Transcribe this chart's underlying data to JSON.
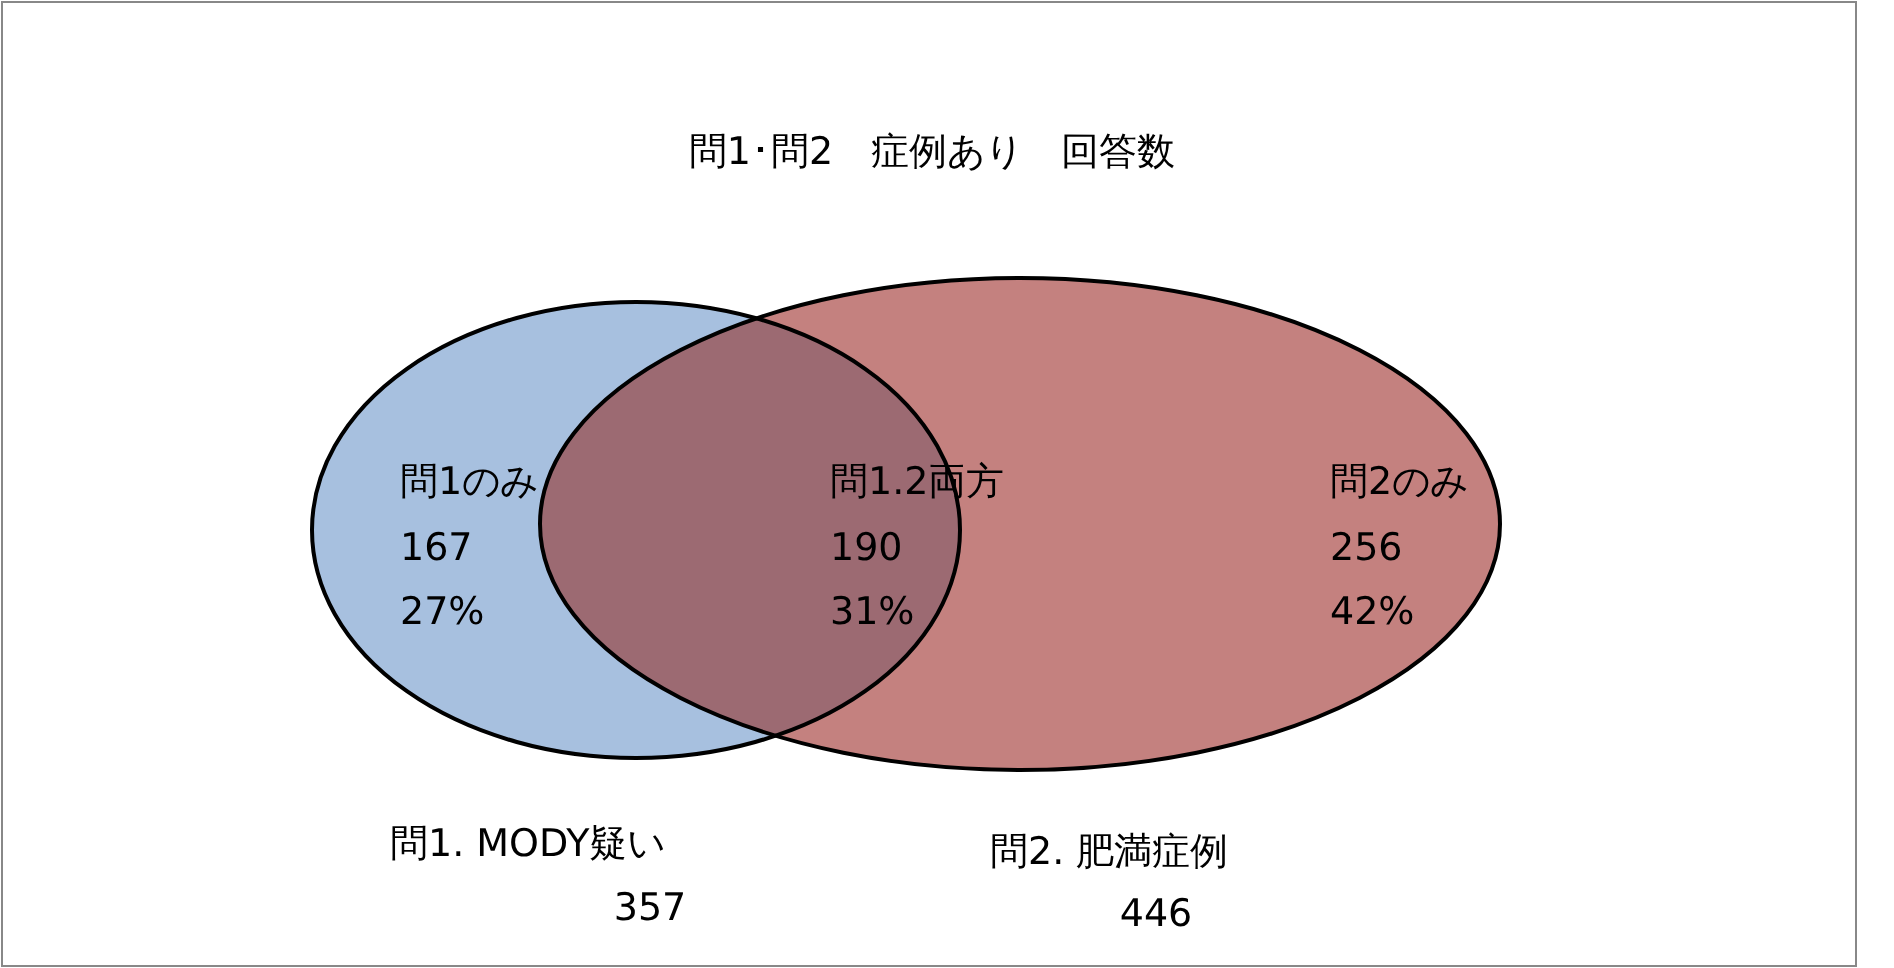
{
  "chart_data": {
    "type": "other",
    "title": "問1･問2　症例あり　回答数",
    "categories": [
      "問1のみ",
      "問1.2両方",
      "問2のみ"
    ],
    "values": [
      167,
      190,
      256
    ],
    "data_labels": true,
    "colors": [
      "#a7c0df",
      "#9c6a72",
      "#c4817f"
    ],
    "annotations": [
      "27%",
      "31%",
      "42%",
      "問1. MODY疑い",
      "357",
      "問2. 肥満症例",
      "446"
    ]
  }
}
